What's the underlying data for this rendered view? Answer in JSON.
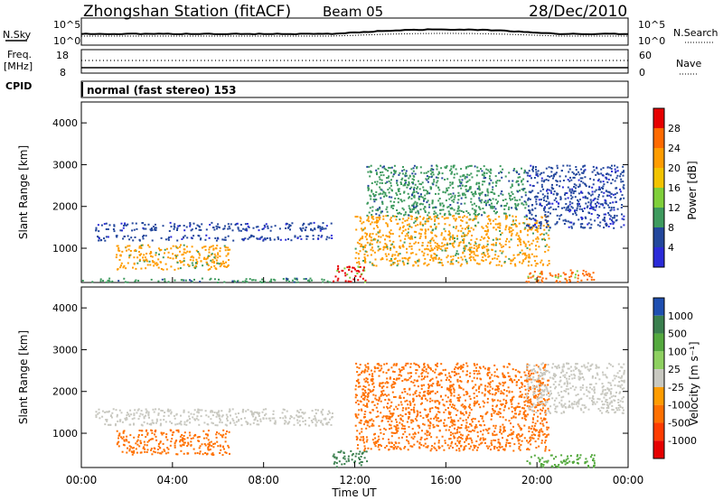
{
  "header": {
    "station": "Zhongshan Station (fitACF)",
    "beam": "Beam 05",
    "date": "28/Dec/2010"
  },
  "aux_panels": {
    "nsky_label": "N.Sky",
    "nsky_ticks": [
      "10^5",
      "10^0"
    ],
    "nsearch_label": "N.Search",
    "nsearch_ticks": [
      "10^5",
      "10^0"
    ],
    "freq_label_1": "Freq.",
    "freq_label_2": "[MHz]",
    "freq_ticks": [
      "18",
      "8"
    ],
    "nave_label": "Nave",
    "nave_ticks": [
      "60",
      "0"
    ],
    "cpid_label": "CPID",
    "cpid_text": "normal (fast stereo) 153"
  },
  "chart_data": [
    {
      "type": "heatmap",
      "panel": "power",
      "ylabel": "Slant Range [km]",
      "yticks": [
        "4000",
        "3000",
        "2000",
        "1000"
      ],
      "ylim": [
        180,
        4500
      ],
      "xlim": [
        "00:00",
        "24:00"
      ],
      "colorbar_label": "Power [dB]",
      "colorbar_ticks": [
        "28",
        "24",
        "20",
        "16",
        "12",
        "8",
        "4"
      ],
      "colorbar_colors": [
        "#e60000",
        "#ff6a00",
        "#ff9c00",
        "#f2c300",
        "#7fcf3a",
        "#3e9a5e",
        "#23479c",
        "#2b2bd8"
      ],
      "regions": [
        {
          "x": [
            0.6,
            11.0
          ],
          "y": [
            1430,
            1630
          ],
          "value": 7
        },
        {
          "x": [
            0.6,
            11.0
          ],
          "y": [
            1200,
            1330
          ],
          "value": 6
        },
        {
          "x": [
            1.5,
            6.5
          ],
          "y": [
            500,
            1100
          ],
          "value": 20
        },
        {
          "x": [
            0.0,
            11.0
          ],
          "y": [
            200,
            300
          ],
          "value": 10
        },
        {
          "x": [
            11.0,
            12.5
          ],
          "y": [
            200,
            600
          ],
          "value": 28
        },
        {
          "x": [
            12.0,
            20.5
          ],
          "y": [
            600,
            1800
          ],
          "value": 20
        },
        {
          "x": [
            12.5,
            19.5
          ],
          "y": [
            1800,
            3000
          ],
          "value": 10
        },
        {
          "x": [
            19.5,
            23.8
          ],
          "y": [
            1500,
            3000
          ],
          "value": 6
        },
        {
          "x": [
            19.5,
            22.5
          ],
          "y": [
            200,
            500
          ],
          "value": 24
        }
      ]
    },
    {
      "type": "heatmap",
      "panel": "velocity",
      "ylabel": "Slant Range [km]",
      "yticks": [
        "4000",
        "3000",
        "2000",
        "1000"
      ],
      "ylim": [
        180,
        4500
      ],
      "xlabel": "Time UT",
      "xticks": [
        "00:00",
        "04:00",
        "08:00",
        "12:00",
        "16:00",
        "20:00",
        "00:00"
      ],
      "colorbar_label": "Velocity [m s⁻¹]",
      "colorbar_ticks": [
        "1000",
        "500",
        "100",
        "25",
        "-25",
        "-100",
        "-500",
        "-1000"
      ],
      "colorbar_colors": [
        "#1f4fb0",
        "#3a7f4e",
        "#54a93e",
        "#8ed060",
        "#c8c8c0",
        "#ff9c00",
        "#ff7000",
        "#ff3c00",
        "#e60000"
      ],
      "regions": [
        {
          "x": [
            0.6,
            11.0
          ],
          "y": [
            1200,
            1600
          ],
          "value": 0
        },
        {
          "x": [
            1.5,
            6.5
          ],
          "y": [
            500,
            1100
          ],
          "value": -300
        },
        {
          "x": [
            11.0,
            12.5
          ],
          "y": [
            200,
            600
          ],
          "value": 300
        },
        {
          "x": [
            12.0,
            20.5
          ],
          "y": [
            600,
            2700
          ],
          "value": -300
        },
        {
          "x": [
            19.5,
            23.8
          ],
          "y": [
            1500,
            2700
          ],
          "value": 0
        },
        {
          "x": [
            19.5,
            22.5
          ],
          "y": [
            200,
            500
          ],
          "value": 60
        }
      ]
    }
  ]
}
